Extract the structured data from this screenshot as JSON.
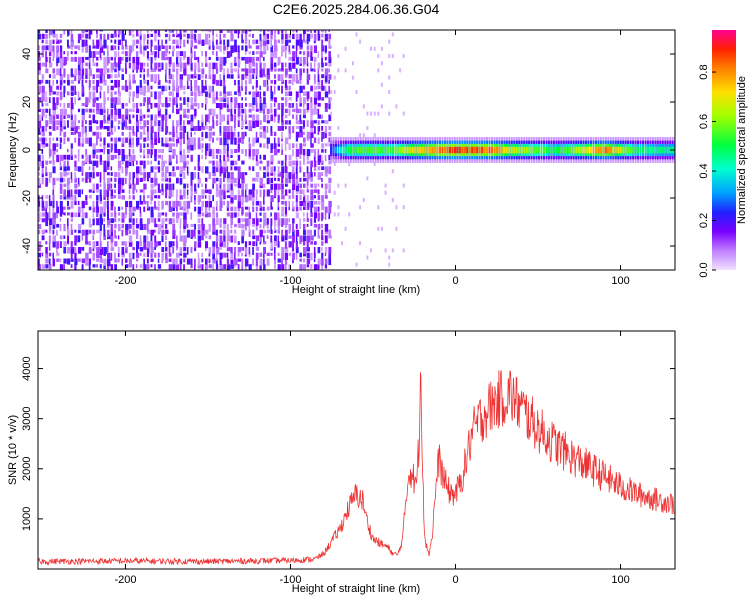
{
  "title": "C2E6.2025.284.06.36.G04",
  "chart_data": [
    {
      "type": "heatmap",
      "xlabel": "Height of straight line (km)",
      "ylabel": "Frequency (Hz)",
      "xlim": [
        -253,
        133
      ],
      "ylim": [
        -50,
        50
      ],
      "xticks": [
        -200,
        -100,
        0,
        100
      ],
      "yticks": [
        -40,
        -20,
        0,
        20,
        40
      ],
      "colorbar": {
        "label": "Normalized spectral amplitude",
        "range": [
          0,
          0.97
        ],
        "ticks": [
          0.0,
          0.2,
          0.4,
          0.6,
          0.8
        ]
      },
      "signal_band": {
        "center_hz": 0,
        "halfwidth_hz": 3,
        "start_km": -76,
        "profile": [
          {
            "x": -76,
            "amp": 0.25
          },
          {
            "x": -65,
            "amp": 0.55
          },
          {
            "x": -50,
            "amp": 0.6
          },
          {
            "x": -40,
            "amp": 0.55
          },
          {
            "x": -25,
            "amp": 0.75
          },
          {
            "x": -10,
            "amp": 0.85
          },
          {
            "x": 0,
            "amp": 0.9
          },
          {
            "x": 20,
            "amp": 0.85
          },
          {
            "x": 40,
            "amp": 0.65
          },
          {
            "x": 60,
            "amp": 0.5
          },
          {
            "x": 90,
            "amp": 0.85
          },
          {
            "x": 110,
            "amp": 0.5
          },
          {
            "x": 133,
            "amp": 0.45
          }
        ]
      },
      "noise_region_km": [
        -253,
        -76
      ]
    },
    {
      "type": "line",
      "xlabel": "Height of straight line (km)",
      "ylabel": "SNR (10 * v/v)",
      "xlim": [
        -253,
        133
      ],
      "ylim": [
        0,
        4750
      ],
      "xticks": [
        -200,
        -100,
        0,
        100
      ],
      "yticks": [
        1000,
        2000,
        3000,
        4000
      ],
      "color": "#ee3333",
      "series": [
        {
          "x": [
            -253,
            -200,
            -150,
            -100,
            -85,
            -80,
            -75,
            -70,
            -65,
            -60,
            -56,
            -54,
            -50,
            -45,
            -42,
            -40,
            -38,
            -35,
            -32,
            -30,
            -28,
            -26,
            -24,
            -22,
            -21,
            -20,
            -19,
            -18,
            -16,
            -14,
            -12,
            -10,
            -8,
            -5,
            -2,
            0,
            3,
            6,
            8,
            10,
            15,
            20,
            25,
            30,
            33,
            35,
            40,
            45,
            50,
            60,
            70,
            80,
            90,
            100,
            110,
            120,
            133
          ],
          "y": [
            150,
            160,
            150,
            170,
            200,
            300,
            550,
            800,
            1200,
            1500,
            1350,
            1000,
            600,
            500,
            450,
            400,
            300,
            280,
            600,
            1400,
            2000,
            1900,
            1600,
            2600,
            4300,
            2200,
            900,
            500,
            300,
            700,
            1600,
            2200,
            1900,
            1600,
            1500,
            1500,
            1700,
            2100,
            2400,
            2700,
            3000,
            3200,
            3350,
            3450,
            3500,
            3400,
            3200,
            3000,
            2800,
            2500,
            2250,
            2050,
            1850,
            1650,
            1500,
            1400,
            1300
          ]
        }
      ]
    }
  ]
}
